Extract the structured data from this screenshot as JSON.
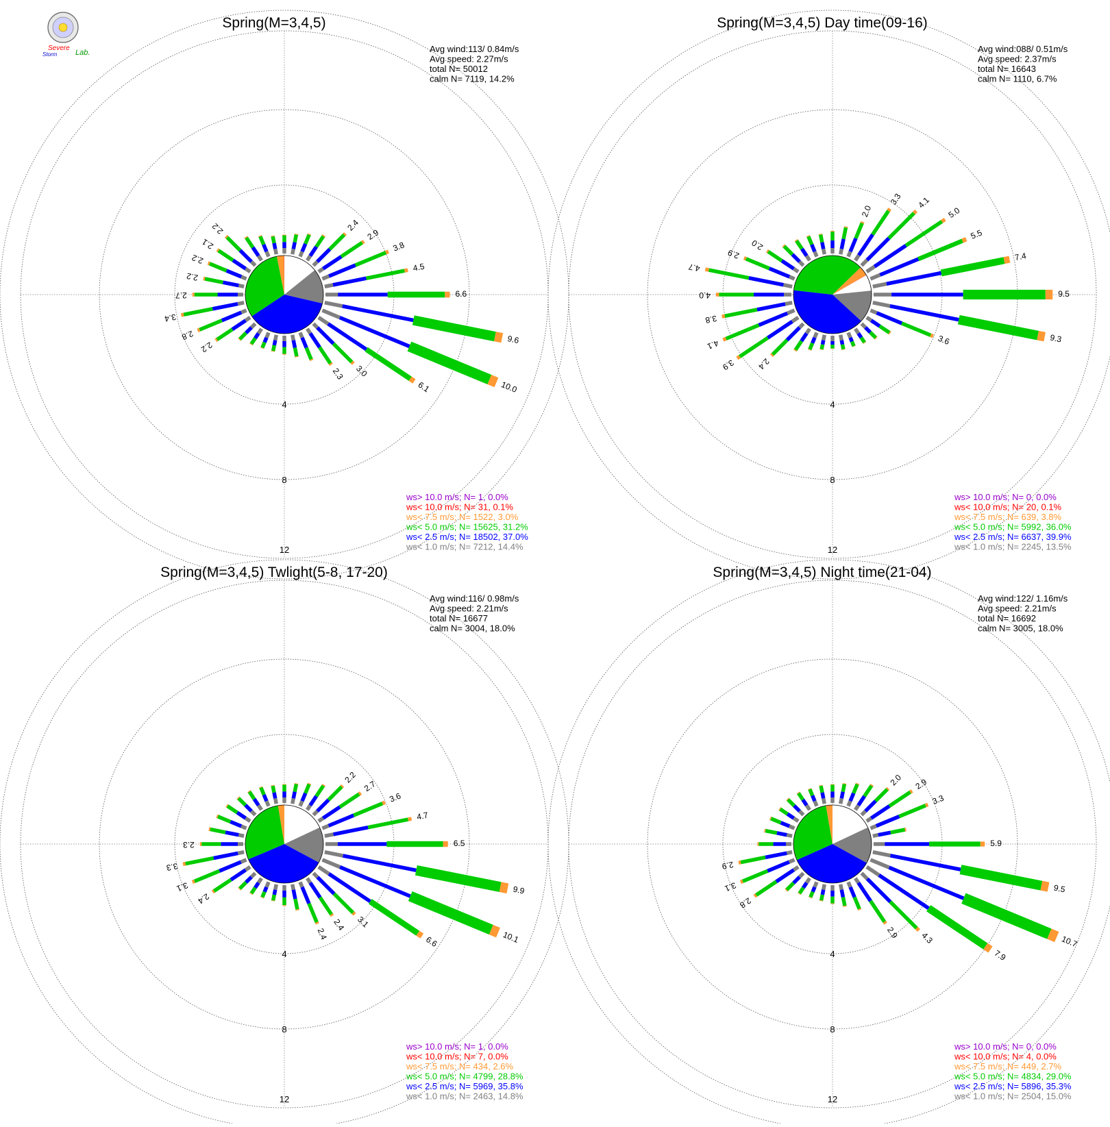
{
  "logo": {
    "text_line1": "Severe",
    "text_line2": "Storm",
    "text_line3": "Lab."
  },
  "scale_labels": [
    "4",
    "8",
    "12"
  ],
  "colors": {
    "calm": "#ffffff",
    "lt1": "#808080",
    "lt2_5": "#0000ff",
    "lt5": "#00cc00",
    "lt7_5": "#ff9933",
    "lt10": "#ff0000",
    "gt10": "#9900cc"
  },
  "chart_data": [
    {
      "type": "windrose",
      "title": "Spring(M=3,4,5)",
      "stats": [
        "Avg wind:113/ 0.84m/s",
        "Avg speed: 2.27m/s",
        "total N=      50012",
        "calm N=   7119,  14.2%"
      ],
      "legend": [
        {
          "text": "ws> 10.0 m/s; N=      1,  0.0%",
          "color": "#9900cc"
        },
        {
          "text": "ws< 10.0 m/s; N=     31,  0.1%",
          "color": "#ff0000"
        },
        {
          "text": "ws<  7.5 m/s; N=  1522,  3.0%",
          "color": "#ff9933"
        },
        {
          "text": "ws<  5.0 m/s; N= 15625, 31.2%",
          "color": "#00cc00"
        },
        {
          "text": "ws<  2.5 m/s; N= 18502, 37.0%",
          "color": "#0000ff"
        },
        {
          "text": "ws<  1.0 m/s; N=  7212, 14.4%",
          "color": "#808080"
        }
      ],
      "pie": [
        14.2,
        14.4,
        37.0,
        31.2,
        3.0,
        0.1
      ],
      "direction_totals": [
        1.0,
        1.1,
        1.3,
        1.6,
        2.4,
        2.9,
        3.8,
        4.5,
        6.6,
        9.6,
        10.0,
        6.1,
        3.0,
        2.3,
        1.6,
        1.2,
        1.0,
        0.9,
        0.9,
        1.0,
        1.2,
        2.2,
        2.8,
        3.4,
        2.7,
        2.2,
        2.2,
        2.1,
        2.2,
        1.5,
        1.2,
        1.0
      ],
      "labeled": [
        "2.4",
        "2.9",
        "3.8",
        "4.5",
        "6.6",
        "9.6",
        "10.0",
        "6.1",
        "3.0",
        "2.3",
        "2.2",
        "2.8",
        "3.4",
        "2.7",
        "2.2",
        "2.2",
        "2.1",
        "2.2"
      ],
      "labeled_index": [
        4,
        5,
        6,
        7,
        8,
        9,
        10,
        11,
        12,
        13,
        21,
        22,
        23,
        24,
        25,
        26,
        27,
        28
      ]
    },
    {
      "type": "windrose",
      "title": "Spring(M=3,4,5) Day time(09-16)",
      "stats": [
        "Avg wind:088/ 0.51m/s",
        "Avg speed: 2.37m/s",
        "total N=      16643",
        "calm N=   1110,   6.7%"
      ],
      "legend": [
        {
          "text": "ws> 10.0 m/s; N=      0,  0.0%",
          "color": "#9900cc"
        },
        {
          "text": "ws< 10.0 m/s; N=     20,  0.1%",
          "color": "#ff0000"
        },
        {
          "text": "ws<  7.5 m/s; N=    639,  3.8%",
          "color": "#ff9933"
        },
        {
          "text": "ws<  5.0 m/s; N=  5992, 36.0%",
          "color": "#00cc00"
        },
        {
          "text": "ws<  2.5 m/s; N=  6637, 39.9%",
          "color": "#0000ff"
        },
        {
          "text": "ws<  1.0 m/s; N=  2245, 13.5%",
          "color": "#808080"
        }
      ],
      "pie": [
        6.7,
        13.5,
        39.9,
        36.0,
        3.8,
        0.1
      ],
      "direction_totals": [
        1.2,
        1.5,
        2.0,
        3.3,
        4.1,
        5.0,
        5.5,
        7.4,
        9.5,
        9.3,
        3.6,
        1.5,
        1.1,
        0.9,
        0.8,
        0.8,
        0.7,
        0.8,
        1.0,
        1.4,
        2.4,
        3.9,
        4.1,
        3.8,
        4.0,
        4.7,
        2.9,
        2.0,
        1.5,
        1.3,
        1.2,
        1.1
      ],
      "labeled": [
        "2.0",
        "3.3",
        "4.1",
        "5.0",
        "5.5",
        "7.4",
        "9.5",
        "9.3",
        "3.6",
        "2.4",
        "3.9",
        "4.1",
        "3.8",
        "4.0",
        "4.7",
        "2.9",
        "2.0"
      ],
      "labeled_index": [
        2,
        3,
        4,
        5,
        6,
        7,
        8,
        9,
        10,
        20,
        21,
        22,
        23,
        24,
        25,
        26,
        27
      ]
    },
    {
      "type": "windrose",
      "title": "Spring(M=3,4,5) Twlight(5-8, 17-20)",
      "stats": [
        "Avg wind:116/ 0.98m/s",
        "Avg speed: 2.21m/s",
        "total N=      16677",
        "calm N=   3004,  18.0%"
      ],
      "legend": [
        {
          "text": "ws> 10.0 m/s; N=      1,  0.0%",
          "color": "#9900cc"
        },
        {
          "text": "ws< 10.0 m/s; N=      7,  0.0%",
          "color": "#ff0000"
        },
        {
          "text": "ws<  7.5 m/s; N=    434,  2.6%",
          "color": "#ff9933"
        },
        {
          "text": "ws<  5.0 m/s; N=  4799, 28.8%",
          "color": "#00cc00"
        },
        {
          "text": "ws<  2.5 m/s; N=  5969, 35.8%",
          "color": "#0000ff"
        },
        {
          "text": "ws<  1.0 m/s; N=  2463, 14.8%",
          "color": "#808080"
        }
      ],
      "pie": [
        18.0,
        14.8,
        35.8,
        28.8,
        2.6,
        0.0
      ],
      "direction_totals": [
        1.0,
        1.1,
        1.3,
        1.6,
        2.2,
        2.7,
        3.6,
        4.7,
        6.5,
        9.9,
        10.1,
        6.6,
        3.1,
        2.4,
        2.4,
        1.4,
        1.1,
        0.9,
        0.9,
        1.0,
        1.2,
        2.4,
        3.1,
        3.3,
        2.3,
        1.9,
        1.7,
        1.5,
        1.3,
        1.2,
        1.1,
        1.0
      ],
      "labeled": [
        "2.2",
        "2.7",
        "3.6",
        "4.7",
        "6.5",
        "9.9",
        "10.1",
        "6.6",
        "3.1",
        "2.4",
        "2.4",
        "2.4",
        "3.1",
        "3.3",
        "2.3"
      ],
      "labeled_index": [
        4,
        5,
        6,
        7,
        8,
        9,
        10,
        11,
        12,
        13,
        14,
        21,
        22,
        23,
        24
      ]
    },
    {
      "type": "windrose",
      "title": "Spring(M=3,4,5) Night time(21-04)",
      "stats": [
        "Avg wind:122/ 1.16m/s",
        "Avg speed: 2.21m/s",
        "total N=      16692",
        "calm N=   3005,  18.0%"
      ],
      "legend": [
        {
          "text": "ws> 10.0 m/s; N=      0,  0.0%",
          "color": "#9900cc"
        },
        {
          "text": "ws< 10.0 m/s; N=      4,  0.0%",
          "color": "#ff0000"
        },
        {
          "text": "ws<  7.5 m/s; N=    449,  2.7%",
          "color": "#ff9933"
        },
        {
          "text": "ws<  5.0 m/s; N=  4834, 29.0%",
          "color": "#00cc00"
        },
        {
          "text": "ws<  2.5 m/s; N=  5896, 35.3%",
          "color": "#0000ff"
        },
        {
          "text": "ws<  1.0 m/s; N=  2504, 15.0%",
          "color": "#808080"
        }
      ],
      "pie": [
        18.0,
        15.0,
        35.3,
        29.0,
        2.7,
        0.0
      ],
      "direction_totals": [
        1.0,
        1.1,
        1.3,
        1.6,
        2.0,
        2.9,
        3.3,
        1.8,
        5.9,
        9.5,
        10.7,
        7.9,
        4.3,
        2.9,
        1.6,
        1.2,
        1.0,
        0.9,
        0.9,
        1.0,
        1.3,
        2.8,
        3.1,
        2.9,
        1.8,
        1.5,
        1.4,
        1.2,
        1.2,
        1.1,
        1.0,
        1.0
      ],
      "labeled": [
        "2.0",
        "2.9",
        "3.3",
        "5.9",
        "9.5",
        "10.7",
        "7.9",
        "4.3",
        "2.9",
        "2.8",
        "3.1",
        "2.9"
      ],
      "labeled_index": [
        4,
        5,
        6,
        8,
        9,
        10,
        11,
        12,
        13,
        21,
        22,
        23
      ]
    }
  ]
}
